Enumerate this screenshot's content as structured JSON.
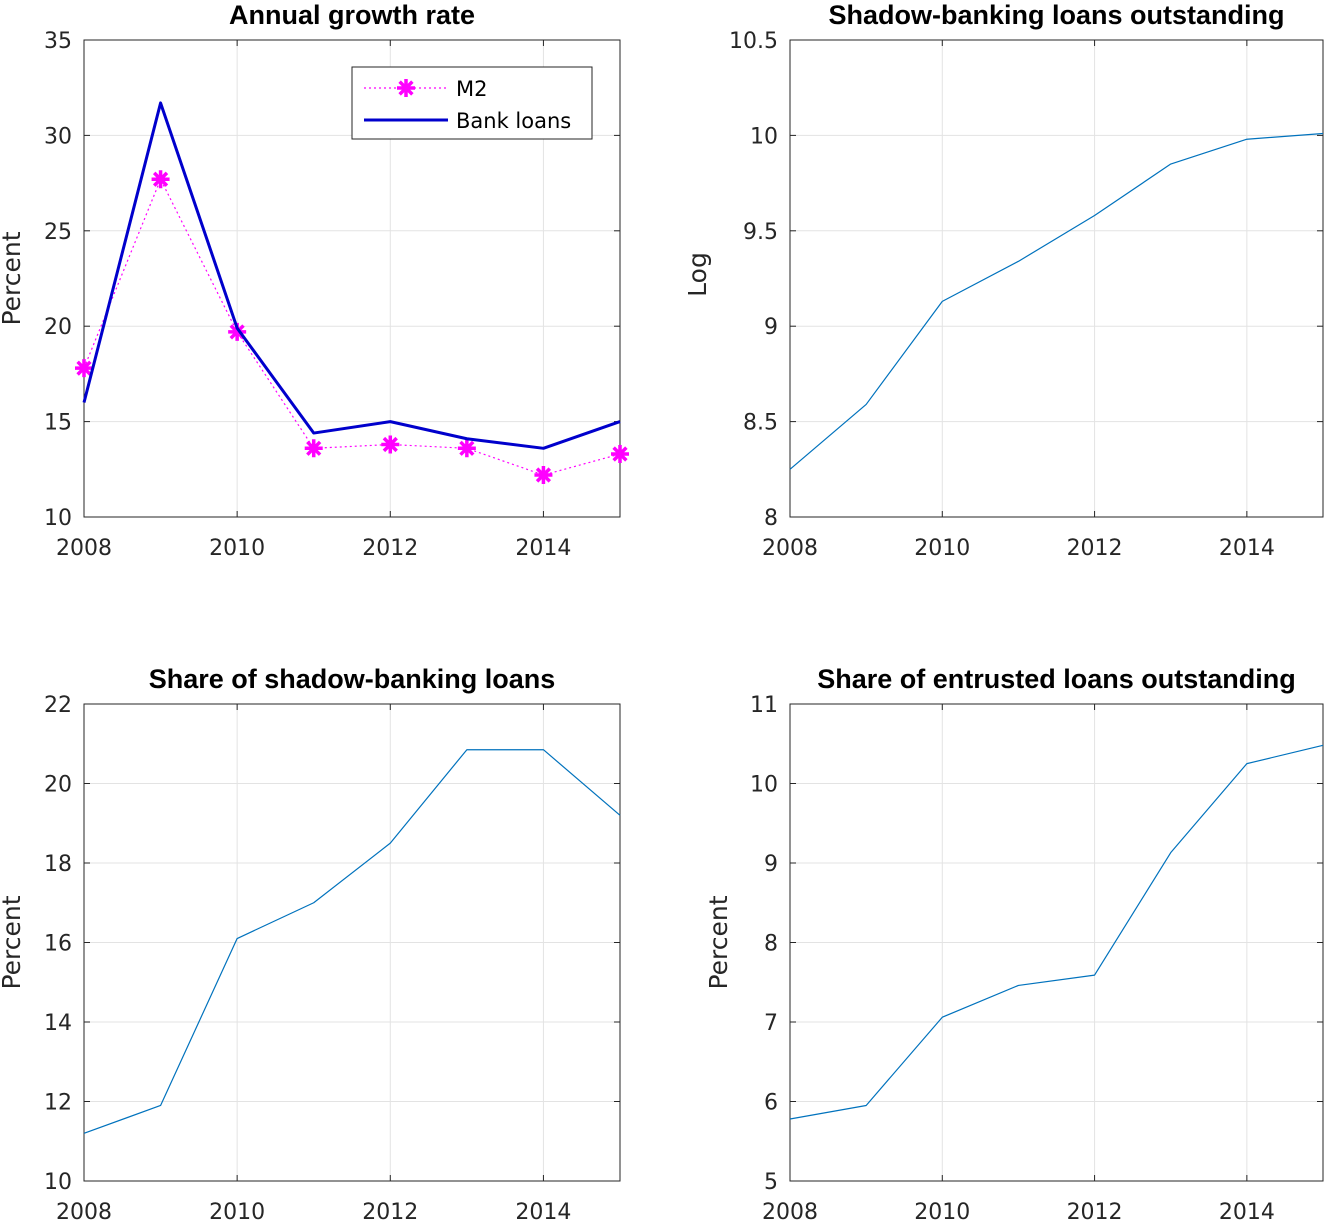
{
  "chart_data": [
    {
      "type": "line",
      "title": "Annual growth rate",
      "xlabel": "",
      "ylabel": "Percent",
      "xlim": [
        2008,
        2015
      ],
      "ylim": [
        10,
        35
      ],
      "xticks": [
        2008,
        2010,
        2012,
        2014
      ],
      "yticks": [
        10,
        15,
        20,
        25,
        30,
        35
      ],
      "grid": true,
      "legend": "top-right",
      "x": [
        2008,
        2009,
        2010,
        2011,
        2012,
        2013,
        2014,
        2015
      ],
      "series": [
        {
          "name": "M2",
          "color": "#ff00ff",
          "style": "dotted-star",
          "values": [
            17.8,
            27.7,
            19.7,
            13.6,
            13.8,
            13.6,
            12.2,
            13.3
          ]
        },
        {
          "name": "Bank loans",
          "color": "#0000cc",
          "style": "solid",
          "values": [
            16.0,
            31.7,
            19.9,
            14.4,
            15.0,
            14.1,
            13.6,
            15.0
          ]
        }
      ]
    },
    {
      "type": "line",
      "title": "Shadow-banking loans outstanding",
      "xlabel": "",
      "ylabel": "Log",
      "xlim": [
        2008,
        2015
      ],
      "ylim": [
        8,
        10.5
      ],
      "xticks": [
        2008,
        2010,
        2012,
        2014
      ],
      "yticks": [
        8,
        8.5,
        9,
        9.5,
        10,
        10.5
      ],
      "grid": true,
      "x": [
        2008,
        2009,
        2010,
        2011,
        2012,
        2013,
        2014,
        2015
      ],
      "series": [
        {
          "color": "#0072bd",
          "style": "solid",
          "values": [
            8.25,
            8.59,
            9.13,
            9.34,
            9.58,
            9.85,
            9.98,
            10.01
          ]
        }
      ]
    },
    {
      "type": "line",
      "title": "Share of shadow-banking loans",
      "xlabel": "",
      "ylabel": "Percent",
      "xlim": [
        2008,
        2015
      ],
      "ylim": [
        10,
        22
      ],
      "xticks": [
        2008,
        2010,
        2012,
        2014
      ],
      "yticks": [
        10,
        12,
        14,
        16,
        18,
        20,
        22
      ],
      "grid": true,
      "x": [
        2008,
        2009,
        2010,
        2011,
        2012,
        2013,
        2014,
        2015
      ],
      "series": [
        {
          "color": "#0072bd",
          "style": "solid",
          "values": [
            11.2,
            11.9,
            16.1,
            17.0,
            18.5,
            20.85,
            20.85,
            19.2
          ]
        }
      ]
    },
    {
      "type": "line",
      "title": "Share of entrusted loans outstanding",
      "xlabel": "",
      "ylabel": "Percent",
      "xlim": [
        2008,
        2015
      ],
      "ylim": [
        5,
        11
      ],
      "xticks": [
        2008,
        2010,
        2012,
        2014
      ],
      "yticks": [
        5,
        6,
        7,
        8,
        9,
        10,
        11
      ],
      "grid": true,
      "x": [
        2008,
        2009,
        2010,
        2011,
        2012,
        2013,
        2014,
        2015
      ],
      "series": [
        {
          "color": "#0072bd",
          "style": "solid",
          "values": [
            5.78,
            5.95,
            7.06,
            7.46,
            7.59,
            9.13,
            10.25,
            10.48
          ]
        }
      ]
    }
  ]
}
